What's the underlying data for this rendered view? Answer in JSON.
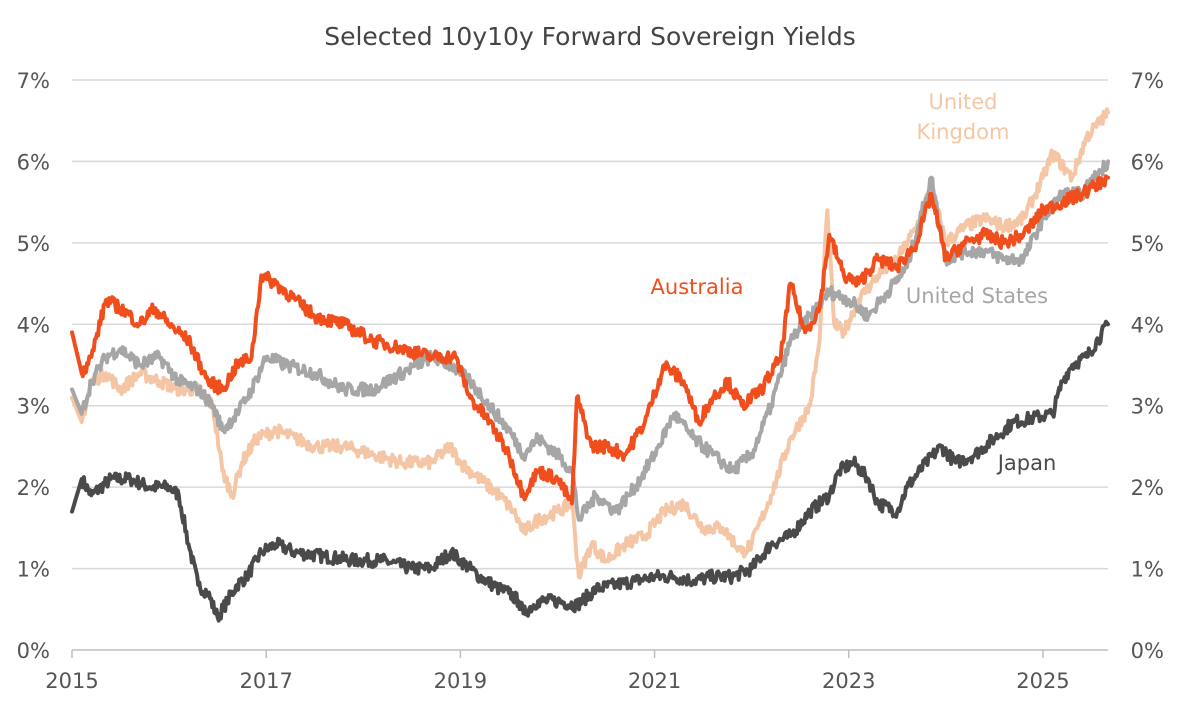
{
  "chart_data": {
    "type": "line",
    "title": "Selected 10y10y Forward Sovereign Yields",
    "xlabel": "",
    "ylabel": "",
    "xlim": [
      2015.0,
      2025.67
    ],
    "ylim": [
      0,
      7
    ],
    "x_ticks": [
      2015,
      2017,
      2019,
      2021,
      2023,
      2025
    ],
    "x_tick_labels": [
      "2015",
      "2017",
      "2019",
      "2021",
      "2023",
      "2025"
    ],
    "y_ticks": [
      0,
      1,
      2,
      3,
      4,
      5,
      6,
      7
    ],
    "y_tick_labels": [
      "0%",
      "1%",
      "2%",
      "3%",
      "4%",
      "5%",
      "6%",
      "7%"
    ],
    "grid": true,
    "series": [
      {
        "name": "Japan",
        "label": "Japan",
        "color": "#4a4a4a",
        "points": [
          [
            2015.0,
            1.7
          ],
          [
            2015.1,
            2.1
          ],
          [
            2015.2,
            1.9
          ],
          [
            2015.4,
            2.1
          ],
          [
            2015.6,
            2.1
          ],
          [
            2015.8,
            2.0
          ],
          [
            2016.0,
            2.0
          ],
          [
            2016.1,
            1.9
          ],
          [
            2016.2,
            1.3
          ],
          [
            2016.3,
            0.8
          ],
          [
            2016.4,
            0.7
          ],
          [
            2016.5,
            0.4
          ],
          [
            2016.6,
            0.6
          ],
          [
            2016.7,
            0.8
          ],
          [
            2016.8,
            0.9
          ],
          [
            2016.95,
            1.2
          ],
          [
            2017.1,
            1.3
          ],
          [
            2017.3,
            1.2
          ],
          [
            2017.6,
            1.15
          ],
          [
            2017.9,
            1.1
          ],
          [
            2018.2,
            1.1
          ],
          [
            2018.5,
            1.0
          ],
          [
            2018.7,
            1.0
          ],
          [
            2018.9,
            1.2
          ],
          [
            2019.0,
            1.1
          ],
          [
            2019.2,
            0.9
          ],
          [
            2019.4,
            0.75
          ],
          [
            2019.5,
            0.7
          ],
          [
            2019.6,
            0.6
          ],
          [
            2019.65,
            0.45
          ],
          [
            2019.8,
            0.6
          ],
          [
            2020.0,
            0.6
          ],
          [
            2020.2,
            0.55
          ],
          [
            2020.4,
            0.75
          ],
          [
            2020.6,
            0.8
          ],
          [
            2020.8,
            0.85
          ],
          [
            2021.0,
            0.9
          ],
          [
            2021.2,
            0.9
          ],
          [
            2021.4,
            0.85
          ],
          [
            2021.6,
            0.9
          ],
          [
            2021.8,
            0.9
          ],
          [
            2022.0,
            1.0
          ],
          [
            2022.2,
            1.3
          ],
          [
            2022.4,
            1.4
          ],
          [
            2022.6,
            1.7
          ],
          [
            2022.8,
            1.9
          ],
          [
            2022.9,
            2.2
          ],
          [
            2023.05,
            2.3
          ],
          [
            2023.2,
            2.1
          ],
          [
            2023.3,
            1.8
          ],
          [
            2023.5,
            1.7
          ],
          [
            2023.6,
            2.0
          ],
          [
            2023.8,
            2.3
          ],
          [
            2023.95,
            2.5
          ],
          [
            2024.1,
            2.3
          ],
          [
            2024.3,
            2.4
          ],
          [
            2024.5,
            2.6
          ],
          [
            2024.7,
            2.8
          ],
          [
            2024.9,
            2.85
          ],
          [
            2025.1,
            2.9
          ],
          [
            2025.2,
            3.3
          ],
          [
            2025.3,
            3.5
          ],
          [
            2025.45,
            3.6
          ],
          [
            2025.67,
            4.0
          ]
        ]
      },
      {
        "name": "United Kingdom",
        "label": "United Kingdom",
        "color": "#f4c6a5",
        "points": [
          [
            2015.0,
            3.1
          ],
          [
            2015.1,
            2.8
          ],
          [
            2015.2,
            3.3
          ],
          [
            2015.35,
            3.4
          ],
          [
            2015.5,
            3.2
          ],
          [
            2015.7,
            3.4
          ],
          [
            2015.9,
            3.3
          ],
          [
            2016.1,
            3.2
          ],
          [
            2016.3,
            3.2
          ],
          [
            2016.45,
            3.0
          ],
          [
            2016.55,
            2.2
          ],
          [
            2016.65,
            1.9
          ],
          [
            2016.75,
            2.3
          ],
          [
            2016.9,
            2.6
          ],
          [
            2017.1,
            2.7
          ],
          [
            2017.3,
            2.6
          ],
          [
            2017.5,
            2.5
          ],
          [
            2017.8,
            2.5
          ],
          [
            2018.1,
            2.4
          ],
          [
            2018.4,
            2.3
          ],
          [
            2018.7,
            2.3
          ],
          [
            2018.9,
            2.5
          ],
          [
            2019.0,
            2.3
          ],
          [
            2019.2,
            2.1
          ],
          [
            2019.4,
            1.9
          ],
          [
            2019.55,
            1.7
          ],
          [
            2019.65,
            1.45
          ],
          [
            2019.8,
            1.6
          ],
          [
            2020.0,
            1.7
          ],
          [
            2020.15,
            1.8
          ],
          [
            2020.22,
            0.9
          ],
          [
            2020.35,
            1.3
          ],
          [
            2020.5,
            1.1
          ],
          [
            2020.7,
            1.3
          ],
          [
            2020.9,
            1.4
          ],
          [
            2021.1,
            1.7
          ],
          [
            2021.3,
            1.8
          ],
          [
            2021.5,
            1.5
          ],
          [
            2021.7,
            1.5
          ],
          [
            2021.9,
            1.2
          ],
          [
            2022.0,
            1.3
          ],
          [
            2022.2,
            1.9
          ],
          [
            2022.4,
            2.6
          ],
          [
            2022.6,
            3.0
          ],
          [
            2022.7,
            3.8
          ],
          [
            2022.78,
            5.4
          ],
          [
            2022.85,
            4.0
          ],
          [
            2022.95,
            3.9
          ],
          [
            2023.1,
            4.3
          ],
          [
            2023.3,
            4.6
          ],
          [
            2023.5,
            4.8
          ],
          [
            2023.7,
            5.2
          ],
          [
            2023.85,
            5.7
          ],
          [
            2024.0,
            5.0
          ],
          [
            2024.2,
            5.2
          ],
          [
            2024.4,
            5.3
          ],
          [
            2024.6,
            5.2
          ],
          [
            2024.8,
            5.3
          ],
          [
            2025.0,
            5.8
          ],
          [
            2025.1,
            6.1
          ],
          [
            2025.3,
            5.8
          ],
          [
            2025.45,
            6.3
          ],
          [
            2025.67,
            6.6
          ]
        ]
      },
      {
        "name": "United States",
        "label": "United States",
        "color": "#a6a6a6",
        "points": [
          [
            2015.0,
            3.2
          ],
          [
            2015.1,
            2.9
          ],
          [
            2015.2,
            3.3
          ],
          [
            2015.35,
            3.6
          ],
          [
            2015.5,
            3.7
          ],
          [
            2015.7,
            3.5
          ],
          [
            2015.9,
            3.6
          ],
          [
            2016.1,
            3.3
          ],
          [
            2016.3,
            3.2
          ],
          [
            2016.45,
            3.0
          ],
          [
            2016.55,
            2.7
          ],
          [
            2016.7,
            2.9
          ],
          [
            2016.85,
            3.2
          ],
          [
            2017.0,
            3.6
          ],
          [
            2017.2,
            3.5
          ],
          [
            2017.5,
            3.4
          ],
          [
            2017.8,
            3.2
          ],
          [
            2018.1,
            3.2
          ],
          [
            2018.4,
            3.4
          ],
          [
            2018.7,
            3.6
          ],
          [
            2018.9,
            3.5
          ],
          [
            2019.1,
            3.3
          ],
          [
            2019.3,
            3.0
          ],
          [
            2019.5,
            2.7
          ],
          [
            2019.65,
            2.4
          ],
          [
            2019.8,
            2.6
          ],
          [
            2020.0,
            2.4
          ],
          [
            2020.15,
            2.2
          ],
          [
            2020.22,
            1.6
          ],
          [
            2020.4,
            1.9
          ],
          [
            2020.6,
            1.7
          ],
          [
            2020.8,
            2.0
          ],
          [
            2021.0,
            2.4
          ],
          [
            2021.2,
            2.9
          ],
          [
            2021.4,
            2.6
          ],
          [
            2021.6,
            2.4
          ],
          [
            2021.8,
            2.2
          ],
          [
            2022.0,
            2.4
          ],
          [
            2022.2,
            3.0
          ],
          [
            2022.4,
            3.8
          ],
          [
            2022.6,
            4.1
          ],
          [
            2022.8,
            4.4
          ],
          [
            2023.0,
            4.3
          ],
          [
            2023.2,
            4.1
          ],
          [
            2023.4,
            4.4
          ],
          [
            2023.6,
            4.7
          ],
          [
            2023.85,
            5.8
          ],
          [
            2024.0,
            4.8
          ],
          [
            2024.2,
            4.9
          ],
          [
            2024.4,
            4.9
          ],
          [
            2024.6,
            4.8
          ],
          [
            2024.8,
            4.8
          ],
          [
            2025.0,
            5.3
          ],
          [
            2025.2,
            5.6
          ],
          [
            2025.4,
            5.6
          ],
          [
            2025.67,
            6.0
          ]
        ]
      },
      {
        "name": "Australia",
        "label": "Australia",
        "color": "#f04e1c",
        "points": [
          [
            2015.0,
            3.9
          ],
          [
            2015.1,
            3.4
          ],
          [
            2015.2,
            3.6
          ],
          [
            2015.35,
            4.3
          ],
          [
            2015.5,
            4.2
          ],
          [
            2015.7,
            4.0
          ],
          [
            2015.85,
            4.2
          ],
          [
            2016.0,
            4.0
          ],
          [
            2016.2,
            3.8
          ],
          [
            2016.4,
            3.3
          ],
          [
            2016.55,
            3.2
          ],
          [
            2016.7,
            3.5
          ],
          [
            2016.85,
            3.6
          ],
          [
            2016.95,
            4.6
          ],
          [
            2017.1,
            4.5
          ],
          [
            2017.3,
            4.3
          ],
          [
            2017.5,
            4.1
          ],
          [
            2017.8,
            4.0
          ],
          [
            2018.1,
            3.8
          ],
          [
            2018.4,
            3.7
          ],
          [
            2018.7,
            3.6
          ],
          [
            2018.95,
            3.6
          ],
          [
            2019.1,
            3.1
          ],
          [
            2019.3,
            2.8
          ],
          [
            2019.5,
            2.4
          ],
          [
            2019.65,
            1.9
          ],
          [
            2019.8,
            2.2
          ],
          [
            2020.0,
            2.1
          ],
          [
            2020.15,
            1.8
          ],
          [
            2020.2,
            3.1
          ],
          [
            2020.35,
            2.5
          ],
          [
            2020.5,
            2.5
          ],
          [
            2020.7,
            2.4
          ],
          [
            2020.9,
            2.8
          ],
          [
            2021.1,
            3.5
          ],
          [
            2021.3,
            3.3
          ],
          [
            2021.45,
            2.8
          ],
          [
            2021.6,
            3.1
          ],
          [
            2021.75,
            3.3
          ],
          [
            2021.9,
            3.0
          ],
          [
            2022.1,
            3.2
          ],
          [
            2022.3,
            3.6
          ],
          [
            2022.4,
            4.5
          ],
          [
            2022.55,
            3.9
          ],
          [
            2022.7,
            4.2
          ],
          [
            2022.8,
            5.1
          ],
          [
            2022.95,
            4.6
          ],
          [
            2023.1,
            4.5
          ],
          [
            2023.3,
            4.8
          ],
          [
            2023.5,
            4.7
          ],
          [
            2023.7,
            5.0
          ],
          [
            2023.85,
            5.6
          ],
          [
            2024.0,
            4.8
          ],
          [
            2024.2,
            5.0
          ],
          [
            2024.4,
            5.1
          ],
          [
            2024.6,
            5.0
          ],
          [
            2024.8,
            5.1
          ],
          [
            2025.0,
            5.4
          ],
          [
            2025.2,
            5.5
          ],
          [
            2025.4,
            5.6
          ],
          [
            2025.67,
            5.8
          ]
        ]
      }
    ]
  }
}
